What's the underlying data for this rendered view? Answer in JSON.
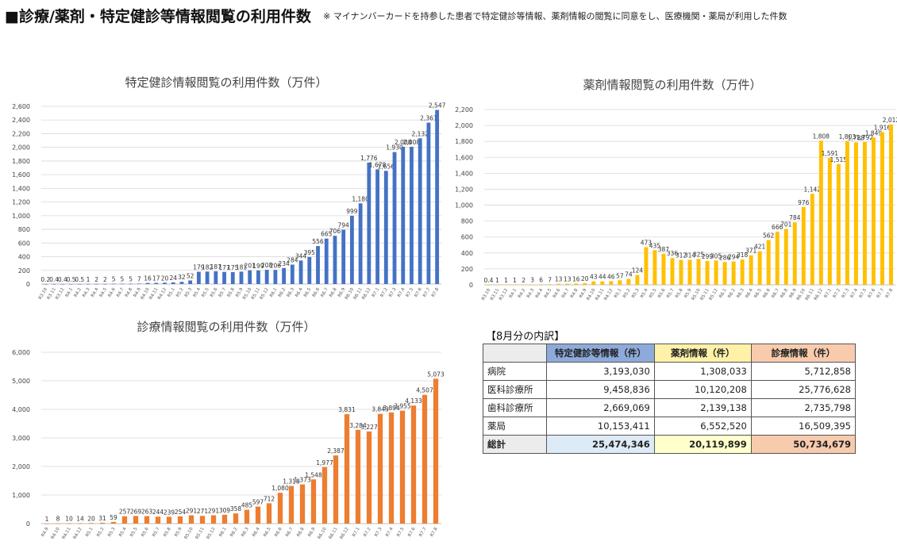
{
  "header": {
    "title": "■診療/薬剤・特定健診等情報閲覧の利用件数",
    "note": "※ マイナンバーカードを持参した患者で特定健診等情報、薬剤情報の閲覧に同意をし、医療機関・薬局が利用した件数"
  },
  "colors": {
    "tokutei": "#4472c4",
    "yakuzai": "#ffc000",
    "shinryo": "#ed7d31",
    "gridline": "#d9d9d9"
  },
  "chart_data": [
    {
      "type": "bar",
      "title": "特定健診情報閲覧の利用件数（万件）",
      "categories": [
        "R3.10",
        "R3.11",
        "R3.12",
        "R4.1",
        "R4.2",
        "R4.3",
        "R4.4",
        "R4.5",
        "R4.6",
        "R4.7",
        "R4.8",
        "R4.9",
        "R4.10",
        "R4.11",
        "R4.12",
        "R5.1",
        "R5.2",
        "R5.3",
        "R5.4",
        "R5.5",
        "R5.6",
        "R5.7",
        "R5.8",
        "R5.9",
        "R5.10",
        "R5.11",
        "R5.12",
        "R6.1",
        "R6.2",
        "R6.3",
        "R6.4",
        "R6.5",
        "R6.6",
        "R6.7",
        "R6.8",
        "R6.9",
        "R6.10",
        "R6.11",
        "R6.12",
        "R7.1",
        "R7.2",
        "R7.3",
        "R7.4",
        "R7.5",
        "R7.6",
        "R7.7",
        "R7.8"
      ],
      "labels": [
        "0.2",
        "0.4",
        "0.4",
        "0.5",
        "0.5",
        "1",
        "2",
        "2",
        "5",
        "5",
        "5",
        "7",
        "16",
        "17",
        "20",
        "24",
        "32",
        "52",
        "179",
        "182",
        "187",
        "177",
        "175",
        "181",
        "201",
        "199",
        "208",
        "206",
        "234",
        "284",
        "344",
        "395",
        "556",
        "665",
        "706",
        "794",
        "999",
        "1,180",
        "1,776",
        "1,678",
        "1,656",
        "1,930",
        "2,008",
        "2,008",
        "2,132",
        "2,361",
        "2,547"
      ],
      "values": [
        0.2,
        0.4,
        0.4,
        0.5,
        0.5,
        1,
        2,
        2,
        5,
        5,
        5,
        7,
        16,
        17,
        20,
        24,
        32,
        52,
        179,
        182,
        187,
        177,
        175,
        181,
        201,
        199,
        208,
        206,
        234,
        284,
        344,
        395,
        556,
        665,
        706,
        794,
        999,
        1180,
        1776,
        1678,
        1656,
        1930,
        2008,
        2008,
        2132,
        2361,
        2547
      ],
      "yticks": [
        "0",
        "200",
        "400",
        "600",
        "800",
        "1,000",
        "1,200",
        "1,400",
        "1,600",
        "1,800",
        "2,000",
        "2,200",
        "2,400",
        "2,600"
      ],
      "ylim": [
        0,
        2600
      ]
    },
    {
      "type": "bar",
      "title": "薬剤情報閲覧の利用件数（万件）",
      "categories": [
        "R3.10",
        "R3.11",
        "R3.12",
        "R4.1",
        "R4.2",
        "R4.3",
        "R4.4",
        "R4.5",
        "R4.6",
        "R4.7",
        "R4.8",
        "R4.9",
        "R4.10",
        "R4.11",
        "R4.12",
        "R5.1",
        "R5.2",
        "R5.3",
        "R5.4",
        "R5.5",
        "R5.6",
        "R5.7",
        "R5.8",
        "R5.9",
        "R5.10",
        "R5.11",
        "R5.12",
        "R6.1",
        "R6.2",
        "R6.3",
        "R6.4",
        "R6.5",
        "R6.6",
        "R6.7",
        "R6.8",
        "R6.9",
        "R6.10",
        "R6.11",
        "R6.12",
        "R7.1",
        "R7.2",
        "R7.3",
        "R7.4",
        "R7.5",
        "R7.6",
        "R7.7",
        "R7.8"
      ],
      "labels": [
        "0.4",
        "1",
        "1",
        "1",
        "2",
        "3",
        "6",
        "7",
        "13",
        "13",
        "16",
        "20",
        "43",
        "44",
        "46",
        "57",
        "74",
        "124",
        "473",
        "435",
        "387",
        "336",
        "312",
        "314",
        "325",
        "299",
        "305",
        "286",
        "294",
        "318",
        "371",
        "421",
        "562",
        "666",
        "701",
        "784",
        "976",
        "1,142",
        "1,808",
        "1,591",
        "1,515",
        "1,803",
        "1,788",
        "1,792",
        "1,849",
        "1,916",
        "2,012"
      ],
      "values": [
        0.4,
        1,
        1,
        1,
        2,
        3,
        6,
        7,
        13,
        13,
        16,
        20,
        43,
        44,
        46,
        57,
        74,
        124,
        473,
        435,
        387,
        336,
        312,
        314,
        325,
        299,
        305,
        286,
        294,
        318,
        371,
        421,
        562,
        666,
        701,
        784,
        976,
        1142,
        1808,
        1591,
        1515,
        1803,
        1788,
        1792,
        1849,
        1916,
        2012
      ],
      "yticks": [
        "0",
        "200",
        "400",
        "600",
        "800",
        "1,000",
        "1,200",
        "1,400",
        "1,600",
        "1,800",
        "2,000",
        "2,200"
      ],
      "ylim": [
        0,
        2200
      ]
    },
    {
      "type": "bar",
      "title": "診療情報閲覧の利用件数（万件）",
      "categories": [
        "R4.9",
        "R4.10",
        "R4.11",
        "R4.12",
        "R5.1",
        "R5.2",
        "R5.3",
        "R5.4",
        "R5.5",
        "R5.6",
        "R5.7",
        "R5.8",
        "R5.9",
        "R5.10",
        "R5.11",
        "R5.12",
        "R6.1",
        "R6.2",
        "R6.3",
        "R6.4",
        "R6.5",
        "R6.6",
        "R6.7",
        "R6.8",
        "R6.9",
        "R6.10",
        "R6.11",
        "R6.12",
        "R7.1",
        "R7.2",
        "R7.3",
        "R7.4",
        "R7.5",
        "R7.6",
        "R7.7",
        "R7.8"
      ],
      "labels": [
        "1",
        "8",
        "10",
        "14",
        "20",
        "31",
        "59",
        "257",
        "269",
        "263",
        "244",
        "239",
        "254",
        "291",
        "271",
        "291",
        "309",
        "358",
        "485",
        "597",
        "712",
        "1,080",
        "1,318",
        "1,373",
        "1,548",
        "1,977",
        "2,387",
        "3,831",
        "3,284",
        "3,227",
        "3,843",
        "3,894",
        "3,955",
        "4,133",
        "4,507",
        "5,073"
      ],
      "values": [
        1,
        8,
        10,
        14,
        20,
        31,
        59,
        257,
        269,
        263,
        244,
        239,
        254,
        291,
        271,
        291,
        309,
        358,
        485,
        597,
        712,
        1080,
        1318,
        1373,
        1548,
        1977,
        2387,
        3831,
        3284,
        3227,
        3843,
        3894,
        3955,
        4133,
        4507,
        5073
      ],
      "yticks": [
        "0",
        "1,000",
        "2,000",
        "3,000",
        "4,000",
        "5,000",
        "6,000"
      ],
      "ylim": [
        0,
        6000
      ]
    }
  ],
  "breakdown": {
    "caption": "【8月分の内訳】",
    "headers": [
      "",
      "特定健診等情報（件）",
      "薬剤情報（件）",
      "診療情報（件）"
    ],
    "header_colors": [
      "#ececec",
      "#8eaadb",
      "#fff2a8",
      "#f8cbad"
    ],
    "rows": [
      {
        "label": "病院",
        "values": [
          "3,193,030",
          "1,308,033",
          "5,712,858"
        ]
      },
      {
        "label": "医科診療所",
        "values": [
          "9,458,836",
          "10,120,208",
          "25,776,628"
        ]
      },
      {
        "label": "歯科診療所",
        "values": [
          "2,669,069",
          "2,139,138",
          "2,735,798"
        ]
      },
      {
        "label": "薬局",
        "values": [
          "10,153,411",
          "6,552,520",
          "16,509,395"
        ]
      }
    ],
    "total": {
      "label": "総計",
      "values": [
        "25,474,346",
        "20,119,899",
        "50,734,679"
      ],
      "colors": [
        "#ececec",
        "#ddebf7",
        "#ffffcc",
        "#f8cbad"
      ]
    }
  }
}
